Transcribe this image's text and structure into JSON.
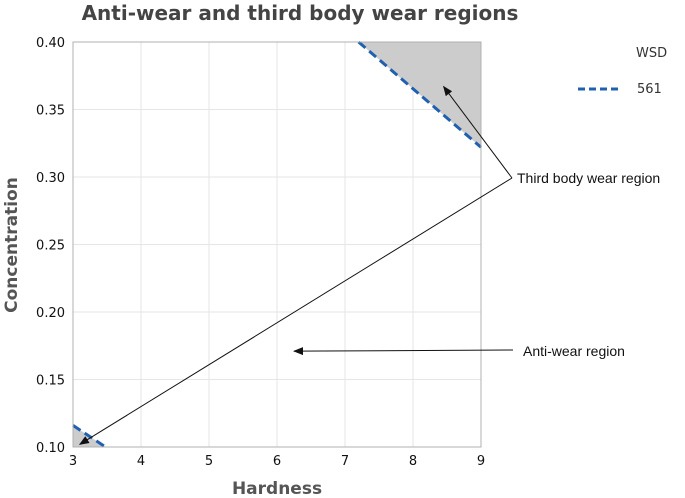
{
  "chart_data": {
    "type": "line",
    "title": "Anti-wear and third body wear regions",
    "xlabel": "Hardness",
    "ylabel": "Concentration",
    "xlim": [
      3,
      9
    ],
    "ylim": [
      0.1,
      0.4
    ],
    "x_ticks": [
      "3",
      "4",
      "5",
      "6",
      "7",
      "8",
      "9"
    ],
    "y_ticks": [
      "0.10",
      "0.15",
      "0.20",
      "0.25",
      "0.30",
      "0.35",
      "0.40"
    ],
    "grid": true,
    "legend": {
      "title": "WSD",
      "placement": "top-right",
      "entries": [
        "561"
      ]
    },
    "series": [
      {
        "name": "561",
        "style": "dashed",
        "color": "#2060b0",
        "segments": [
          [
            [
              7.2,
              0.4
            ],
            [
              9.0,
              0.322
            ]
          ],
          [
            [
              3.0,
              0.116
            ],
            [
              3.48,
              0.1
            ]
          ]
        ]
      }
    ],
    "shaded_regions": [
      {
        "color": "#cccccc",
        "points": [
          [
            7.2,
            0.4
          ],
          [
            9.0,
            0.4
          ],
          [
            9.0,
            0.322
          ]
        ]
      },
      {
        "color": "#cccccc",
        "points": [
          [
            3.0,
            0.1
          ],
          [
            3.0,
            0.116
          ],
          [
            3.48,
            0.1
          ]
        ]
      }
    ],
    "annotations": [
      {
        "text": "Third body wear region",
        "arrow_targets": [
          [
            8.45,
            0.367
          ],
          [
            3.1,
            0.102
          ]
        ]
      },
      {
        "text": "Anti-wear region",
        "arrow_targets": [
          [
            6.25,
            0.171
          ]
        ]
      }
    ]
  }
}
